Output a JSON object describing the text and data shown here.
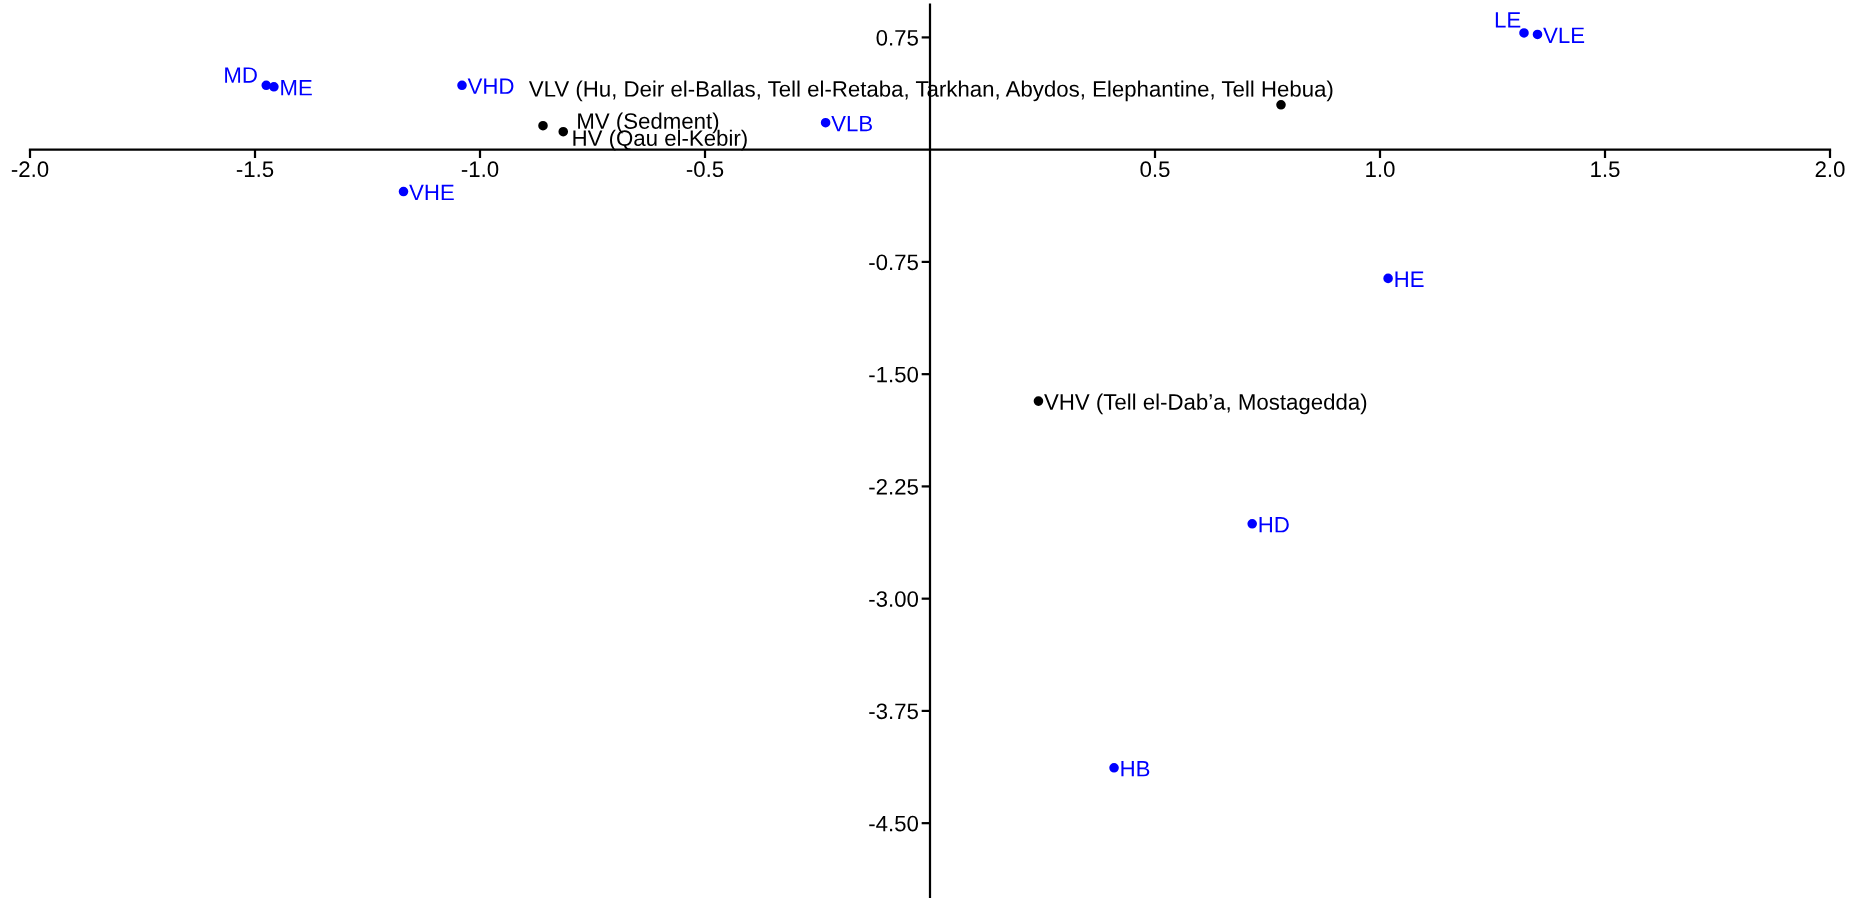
{
  "chart_data": {
    "type": "scatter",
    "series": [
      {
        "color": "#000000",
        "x": [
          0.78,
          -0.86,
          -0.815,
          0.241
        ],
        "values": [
          0.3,
          0.16,
          0.12,
          -1.68
        ]
      },
      {
        "color": "#0000ff",
        "x": [
          -1.475,
          -1.458,
          -1.04,
          -0.232,
          -1.17,
          1.32,
          1.35,
          1.018,
          0.716,
          0.409
        ],
        "values": [
          0.43,
          0.42,
          0.43,
          0.18,
          -0.28,
          0.78,
          0.77,
          -0.86,
          -2.5,
          -4.13
        ]
      }
    ],
    "annotations": [
      {
        "text": "VLV (Hu, Deir el-Ballas, Tell el-Retaba, Tarkhan, Abydos, Elephantine, Tell Hebua)",
        "x": 0.78,
        "y": 0.3
      },
      {
        "text": "MV (Sedment)",
        "x": -0.86,
        "y": 0.16
      },
      {
        "text": "HV (Qau el-Kebir)",
        "x": -0.815,
        "y": 0.12
      },
      {
        "text": "VHV (Tell el-Dab’a, Mostagedda)",
        "x": 0.241,
        "y": -1.68
      },
      {
        "text": "MD",
        "x": -1.475,
        "y": 0.43
      },
      {
        "text": "ME",
        "x": -1.458,
        "y": 0.42
      },
      {
        "text": "VHD",
        "x": -1.04,
        "y": 0.43
      },
      {
        "text": "VLB",
        "x": -0.232,
        "y": 0.18
      },
      {
        "text": "VHE",
        "x": -1.17,
        "y": -0.28
      },
      {
        "text": "LE",
        "x": 1.32,
        "y": 0.78
      },
      {
        "text": "VLE",
        "x": 1.35,
        "y": 0.77
      },
      {
        "text": "HE",
        "x": 1.018,
        "y": -0.86
      },
      {
        "text": "HD",
        "x": 0.716,
        "y": -2.5
      },
      {
        "text": "HB",
        "x": 0.409,
        "y": -4.13
      }
    ],
    "xlim": [
      -2.0,
      2.0
    ],
    "xticks": [
      {
        "value": -2.0,
        "label": "-2.0"
      },
      -1.5,
      {
        "value": -1.0,
        "label": "-1.0"
      },
      -0.5,
      0.5,
      {
        "value": 1.0,
        "label": "1.0"
      },
      1.5,
      {
        "value": 2.0,
        "label": "2.0"
      }
    ],
    "ylim": [
      -5.0,
      0.97
    ],
    "yticks": [
      {
        "value": 0.75,
        "label": "0.75"
      },
      {
        "value": -0.75,
        "label": "-0.75"
      },
      {
        "value": -1.5,
        "label": "-1.50"
      },
      {
        "value": -2.25,
        "label": "-2.25"
      },
      {
        "value": -3.0,
        "label": "-3.00"
      },
      {
        "value": -3.75,
        "label": "-3.75"
      },
      {
        "value": -4.5,
        "label": "-4.50"
      }
    ],
    "grid": false
  }
}
